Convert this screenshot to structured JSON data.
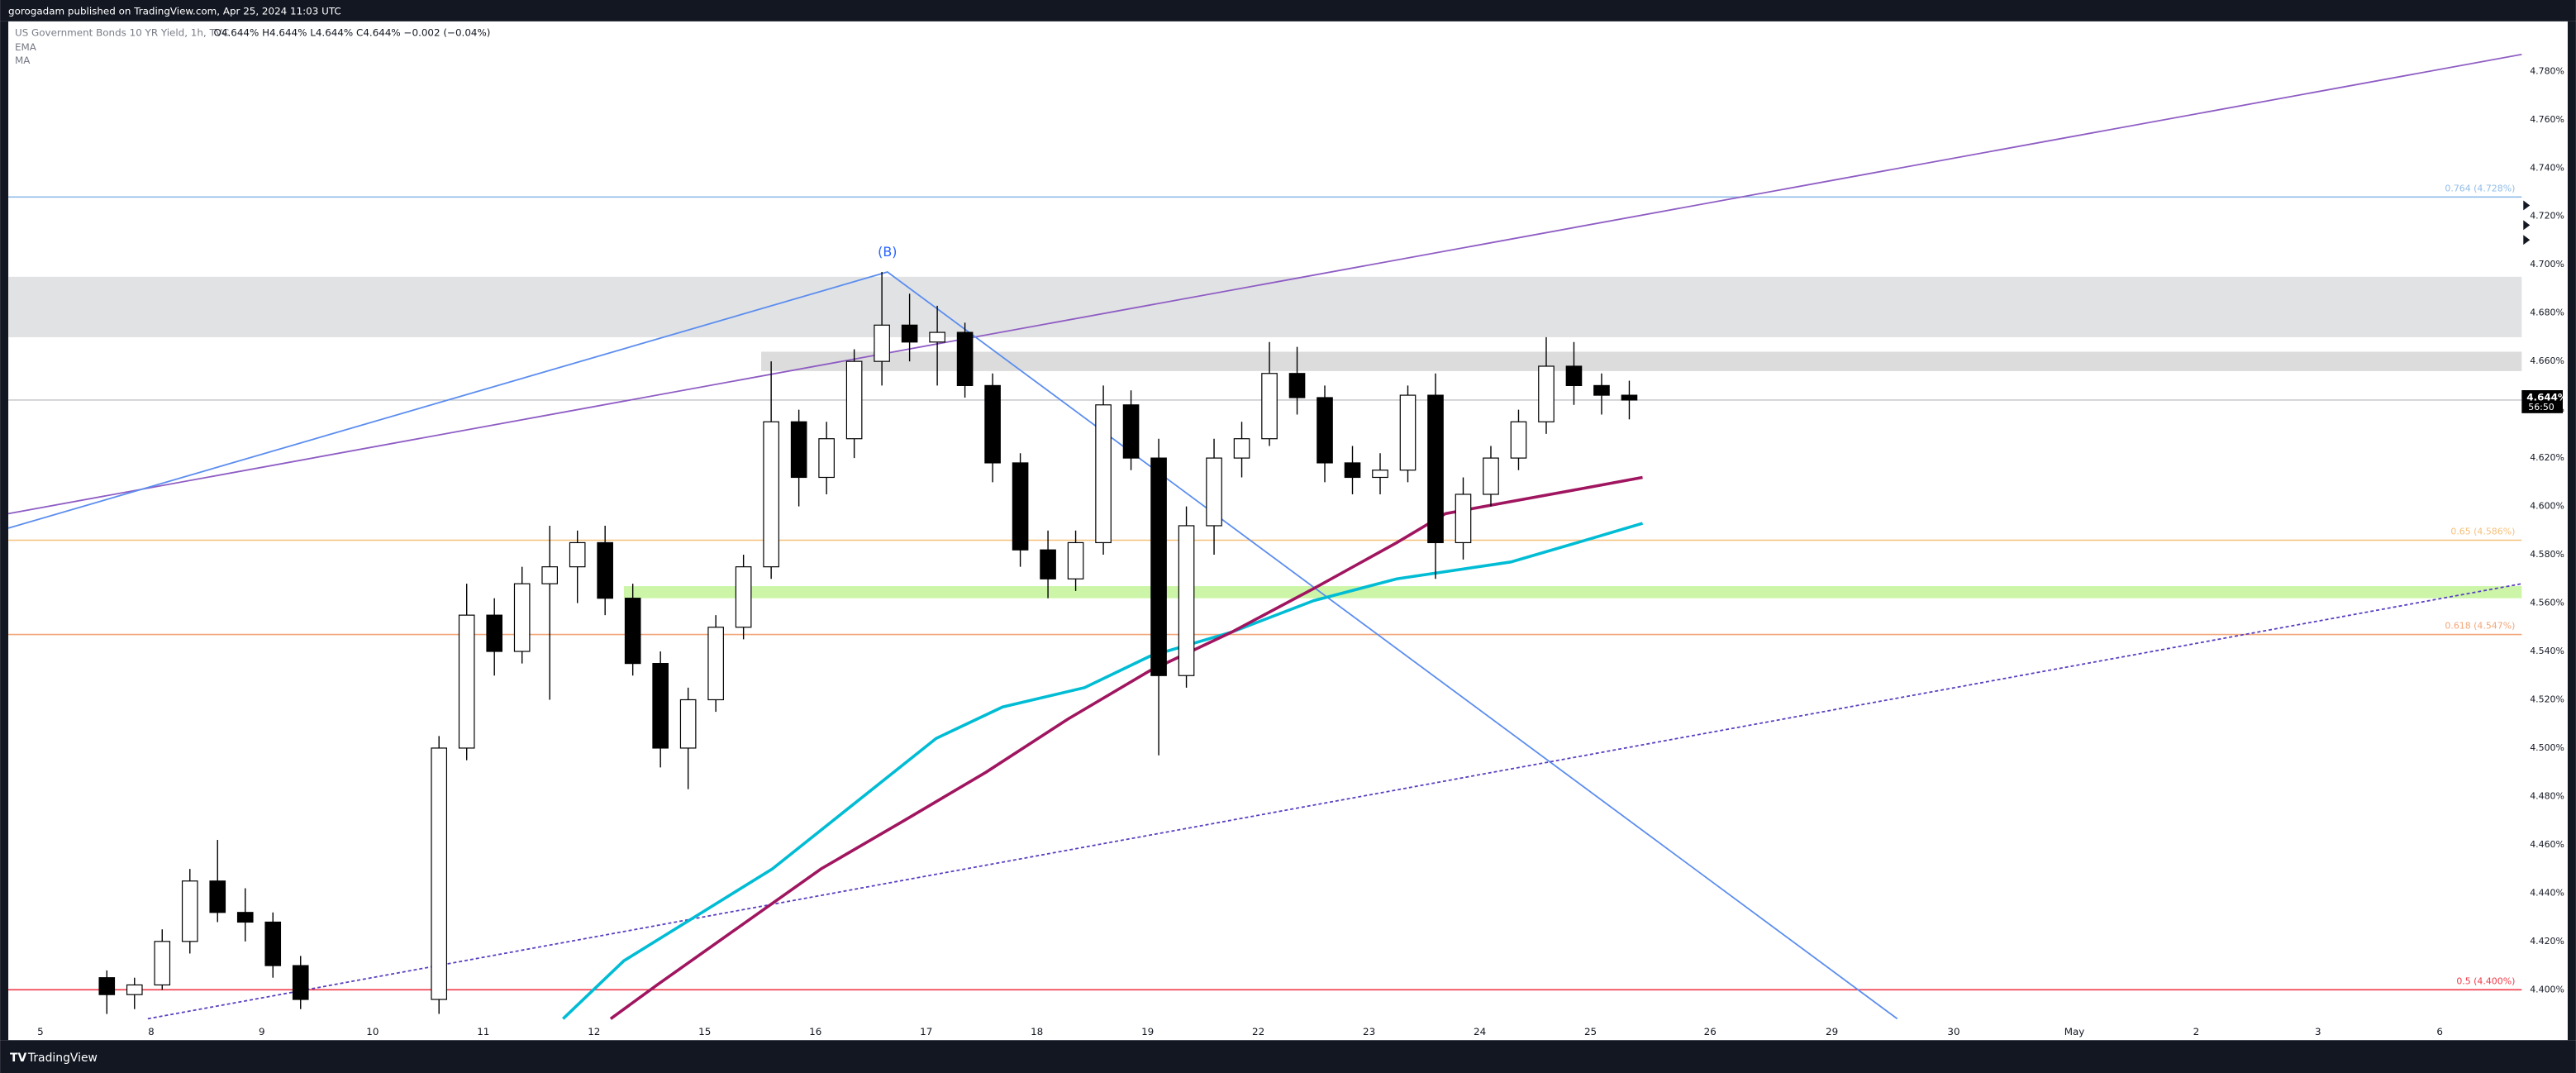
{
  "header": {
    "published": "gorogadam published on TradingView.com, Apr 25, 2024 11:03 UTC",
    "symbol": "US Government Bonds 10 YR Yield, 1h, TVC",
    "ohlc": "O4.644% H4.644% L4.644% C4.644% −0.002 (−0.04%)"
  },
  "footer": {
    "brand": "TradingView"
  },
  "chart_data": {
    "type": "candlestick",
    "up_color": "#ffffff",
    "down_color": "#000000",
    "outline": "#000000",
    "x": [
      0.6,
      0.85,
      1.1,
      1.35,
      1.6,
      1.85,
      2.1,
      2.35,
      3.6,
      3.85,
      4.1,
      4.35,
      4.6,
      4.85,
      5.1,
      5.35,
      5.6,
      5.85,
      6.1,
      6.35,
      6.6,
      6.85,
      7.1,
      7.35,
      7.6,
      7.85,
      8.1,
      8.35,
      8.6,
      8.85,
      9.1,
      9.35,
      9.6,
      9.85,
      10.1,
      10.35,
      10.6,
      10.85,
      11.1,
      11.35,
      11.6,
      11.85,
      12.1,
      12.35,
      12.6,
      12.85,
      13.1,
      13.35,
      13.6,
      13.85,
      14.1,
      14.35
    ],
    "open": [
      4.405,
      4.398,
      4.402,
      4.42,
      4.445,
      4.432,
      4.428,
      4.41,
      4.396,
      4.5,
      4.555,
      4.54,
      4.568,
      4.575,
      4.585,
      4.562,
      4.535,
      4.5,
      4.52,
      4.55,
      4.575,
      4.635,
      4.612,
      4.628,
      4.66,
      4.675,
      4.668,
      4.672,
      4.65,
      4.618,
      4.582,
      4.57,
      4.585,
      4.642,
      4.62,
      4.53,
      4.592,
      4.62,
      4.628,
      4.655,
      4.645,
      4.618,
      4.612,
      4.615,
      4.646,
      4.585,
      4.605,
      4.62,
      4.635,
      4.658,
      4.65,
      4.646
    ],
    "high": [
      4.408,
      4.405,
      4.425,
      4.45,
      4.462,
      4.442,
      4.432,
      4.414,
      4.505,
      4.568,
      4.562,
      4.575,
      4.592,
      4.59,
      4.592,
      4.568,
      4.54,
      4.525,
      4.555,
      4.58,
      4.66,
      4.64,
      4.635,
      4.665,
      4.697,
      4.688,
      4.683,
      4.676,
      4.655,
      4.622,
      4.59,
      4.59,
      4.65,
      4.648,
      4.628,
      4.6,
      4.628,
      4.635,
      4.668,
      4.666,
      4.65,
      4.625,
      4.622,
      4.65,
      4.655,
      4.612,
      4.625,
      4.64,
      4.67,
      4.668,
      4.655,
      4.652
    ],
    "low": [
      4.39,
      4.392,
      4.4,
      4.415,
      4.428,
      4.42,
      4.405,
      4.392,
      4.39,
      4.495,
      4.53,
      4.535,
      4.52,
      4.56,
      4.555,
      4.53,
      4.492,
      4.483,
      4.515,
      4.545,
      4.57,
      4.6,
      4.605,
      4.62,
      4.65,
      4.66,
      4.65,
      4.645,
      4.61,
      4.575,
      4.562,
      4.565,
      4.58,
      4.615,
      4.497,
      4.525,
      4.58,
      4.612,
      4.625,
      4.638,
      4.61,
      4.605,
      4.605,
      4.61,
      4.57,
      4.578,
      4.6,
      4.615,
      4.63,
      4.642,
      4.638,
      4.636
    ],
    "close": [
      4.398,
      4.402,
      4.42,
      4.445,
      4.432,
      4.428,
      4.41,
      4.396,
      4.5,
      4.555,
      4.54,
      4.568,
      4.575,
      4.585,
      4.562,
      4.535,
      4.5,
      4.52,
      4.55,
      4.575,
      4.635,
      4.612,
      4.628,
      4.66,
      4.675,
      4.668,
      4.672,
      4.65,
      4.618,
      4.582,
      4.57,
      4.585,
      4.642,
      4.62,
      4.53,
      4.592,
      4.62,
      4.628,
      4.655,
      4.645,
      4.618,
      4.612,
      4.615,
      4.646,
      4.585,
      4.605,
      4.62,
      4.635,
      4.658,
      4.65,
      4.646,
      4.644
    ],
    "series": [
      {
        "name": "EMA",
        "color": "#00bcd4",
        "x": [
          4.72,
          5.27,
          6.01,
          6.61,
          7.35,
          8.09,
          8.69,
          9.43,
          10.02,
          10.76,
          11.5,
          12.25,
          12.69,
          13.28,
          13.88,
          14.47
        ],
        "values": [
          4.388,
          4.412,
          4.433,
          4.45,
          4.477,
          4.504,
          4.517,
          4.525,
          4.538,
          4.548,
          4.561,
          4.57,
          4.573,
          4.577,
          4.585,
          4.593
        ]
      },
      {
        "name": "MA",
        "color": "#a0155f",
        "x": [
          5.15,
          5.57,
          6.31,
          7.05,
          7.8,
          8.54,
          9.28,
          10.02,
          10.76,
          11.5,
          12.25,
          12.69,
          13.28,
          13.88,
          14.47
        ],
        "values": [
          4.388,
          4.402,
          4.426,
          4.45,
          4.47,
          4.49,
          4.512,
          4.532,
          4.548,
          4.566,
          4.585,
          4.597,
          4.602,
          4.607,
          4.612
        ]
      }
    ],
    "trendlines": [
      {
        "color": "#8e5cc4",
        "dashed": false,
        "x": [
          -0.29,
          22.41
        ],
        "y": [
          4.597,
          4.787
        ]
      },
      {
        "color": "#5b8def",
        "dashed": false,
        "x": [
          -0.29,
          7.65,
          16.77
        ],
        "y": [
          4.591,
          4.697,
          4.388
        ]
      },
      {
        "color": "#5a3fc0",
        "dashed": true,
        "x": [
          0.97,
          22.41
        ],
        "y": [
          4.388,
          4.568
        ]
      }
    ],
    "levels": [
      {
        "value": 4.728,
        "label": "0.764 (4.728%)",
        "color": "#90bde8"
      },
      {
        "value": 4.586,
        "label": "0.65 (4.586%)",
        "color": "#f5c07a"
      },
      {
        "value": 4.547,
        "label": "0.618 (4.547%)",
        "color": "#f2a67a"
      },
      {
        "value": 4.4,
        "label": "0.5 (4.400%)",
        "color": "#f03a48"
      }
    ],
    "zones": [
      {
        "x_start": -0.29,
        "y": [
          4.67,
          4.695
        ],
        "color": "#e1e2e4"
      },
      {
        "x_start": 6.51,
        "y": [
          4.656,
          4.664
        ],
        "color": "#dcdcdc"
      },
      {
        "x_start": 5.27,
        "y": [
          4.562,
          4.567
        ],
        "color": "#ccf5a8"
      }
    ],
    "annotation": {
      "text": "(B)",
      "x": 7.65,
      "y": 4.703,
      "color": "#2962ff"
    },
    "last": {
      "value": 4.644,
      "label": "4.644%",
      "countdown": "56:50"
    },
    "xlim": [
      -0.29,
      22.41
    ],
    "ylim": [
      4.388,
      4.8
    ],
    "xticks": [
      {
        "value": 0,
        "label": "5"
      },
      {
        "value": 1,
        "label": "8"
      },
      {
        "value": 2,
        "label": "9"
      },
      {
        "value": 3,
        "label": "10"
      },
      {
        "value": 4,
        "label": "11"
      },
      {
        "value": 5,
        "label": "12"
      },
      {
        "value": 6,
        "label": "15"
      },
      {
        "value": 7,
        "label": "16"
      },
      {
        "value": 8,
        "label": "17"
      },
      {
        "value": 9,
        "label": "18"
      },
      {
        "value": 10,
        "label": "19"
      },
      {
        "value": 11,
        "label": "22"
      },
      {
        "value": 12,
        "label": "23"
      },
      {
        "value": 13,
        "label": "24"
      },
      {
        "value": 14,
        "label": "25"
      },
      {
        "value": 15.08,
        "label": "26"
      },
      {
        "value": 16.18,
        "label": "29"
      },
      {
        "value": 17.28,
        "label": "30"
      },
      {
        "value": 18.37,
        "label": "May"
      },
      {
        "value": 19.47,
        "label": "2"
      },
      {
        "value": 20.57,
        "label": "3"
      },
      {
        "value": 21.67,
        "label": "6"
      }
    ],
    "yticks": [
      {
        "value": 4.4,
        "label": "4.400%"
      },
      {
        "value": 4.42,
        "label": "4.420%"
      },
      {
        "value": 4.44,
        "label": "4.440%"
      },
      {
        "value": 4.46,
        "label": "4.460%"
      },
      {
        "value": 4.48,
        "label": "4.480%"
      },
      {
        "value": 4.5,
        "label": "4.500%"
      },
      {
        "value": 4.52,
        "label": "4.520%"
      },
      {
        "value": 4.54,
        "label": "4.540%"
      },
      {
        "value": 4.56,
        "label": "4.560%"
      },
      {
        "value": 4.58,
        "label": "4.580%"
      },
      {
        "value": 4.6,
        "label": "4.600%"
      },
      {
        "value": 4.62,
        "label": "4.620%"
      },
      {
        "value": 4.64,
        "label": "4.640%"
      },
      {
        "value": 4.66,
        "label": "4.660%"
      },
      {
        "value": 4.68,
        "label": "4.680%"
      },
      {
        "value": 4.7,
        "label": "4.700%"
      },
      {
        "value": 4.72,
        "label": "4.720%"
      },
      {
        "value": 4.74,
        "label": "4.740%"
      },
      {
        "value": 4.76,
        "label": "4.760%"
      },
      {
        "value": 4.78,
        "label": "4.780%"
      }
    ]
  }
}
